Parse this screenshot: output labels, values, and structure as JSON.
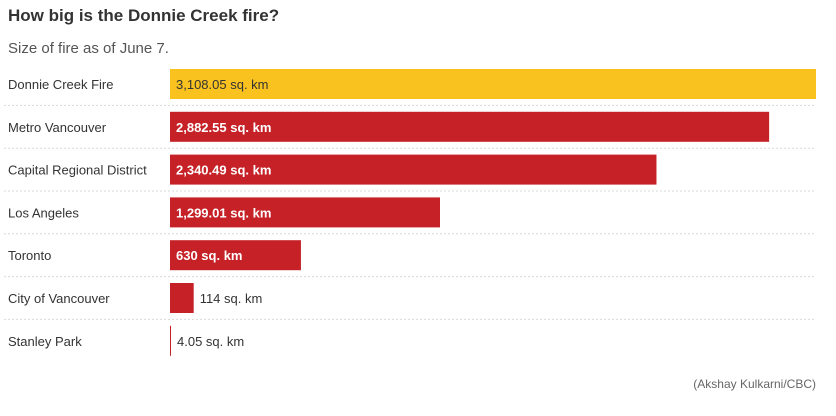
{
  "header": {
    "title": "How big is the Donnie Creek fire?",
    "subtitle": "Size of fire as of June 7."
  },
  "credit": "(Akshay Kulkarni/CBC)",
  "colors": {
    "highlight": "#f9c21f",
    "bar": "#c52127",
    "label_inside": "#ffffff",
    "label_highlight": "#333333",
    "label_outside": "#333333",
    "divider": "#d9d9d9"
  },
  "chart_data": {
    "type": "bar",
    "orientation": "horizontal",
    "categories": [
      "Donnie Creek Fire",
      "Metro Vancouver",
      "Capital Regional District",
      "Los Angeles",
      "Toronto",
      "City of Vancouver",
      "Stanley Park"
    ],
    "values": [
      3108.05,
      2882.55,
      2340.49,
      1299.01,
      630,
      114,
      4.05
    ],
    "data_labels": [
      "3,108.05 sq. km",
      "2,882.55 sq. km",
      "2,340.49 sq. km",
      "1,299.01 sq. km",
      "630 sq. km",
      "114 sq. km",
      "4.05 sq. km"
    ],
    "highlight_index": 0,
    "title": "How big is the Donnie Creek fire?",
    "subtitle": "Size of fire as of June 7.",
    "xlim": [
      0,
      3108.05
    ],
    "grid": false,
    "legend": "none"
  }
}
